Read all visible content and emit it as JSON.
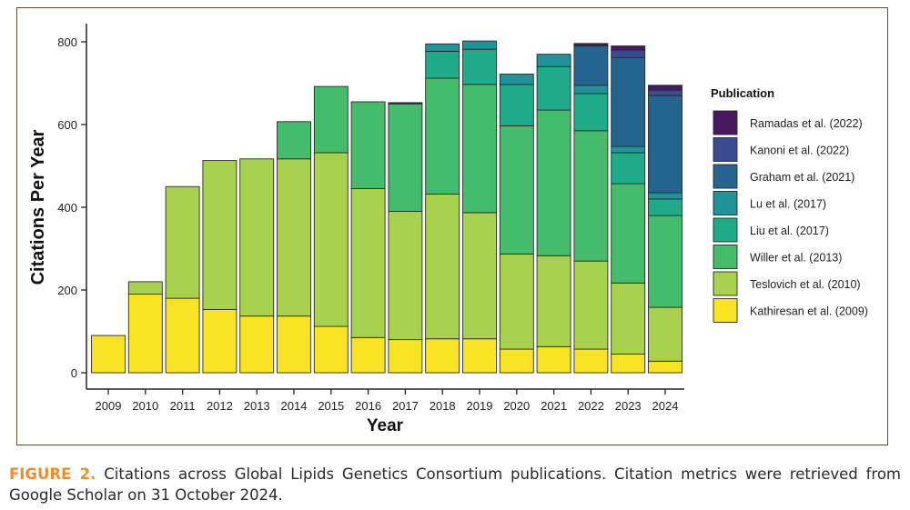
{
  "chart_data": {
    "type": "bar",
    "stacked": true,
    "categories": [
      "2009",
      "2010",
      "2011",
      "2012",
      "2013",
      "2014",
      "2015",
      "2016",
      "2017",
      "2018",
      "2019",
      "2020",
      "2021",
      "2022",
      "2023",
      "2024"
    ],
    "xlabel": "Year",
    "ylabel": "Citations Per Year",
    "ylim": [
      0,
      850
    ],
    "yticks": [
      0,
      200,
      400,
      600,
      800
    ],
    "legend": {
      "title": "Publication",
      "placement": "right"
    },
    "series": [
      {
        "name": "Kathiresan et al. (2009)",
        "color": "#f8e325",
        "values": [
          90,
          190,
          180,
          153,
          137,
          137,
          112,
          85,
          80,
          82,
          82,
          57,
          63,
          57,
          45,
          28
        ]
      },
      {
        "name": "Teslovich et al. (2010)",
        "color": "#a8d14e",
        "values": [
          0,
          30,
          270,
          360,
          380,
          380,
          420,
          360,
          310,
          350,
          305,
          230,
          220,
          213,
          172,
          130
        ]
      },
      {
        "name": "Willer et al. (2013)",
        "color": "#45bc6b",
        "values": [
          0,
          0,
          0,
          0,
          0,
          90,
          160,
          210,
          260,
          280,
          310,
          310,
          352,
          315,
          240,
          222
        ]
      },
      {
        "name": "Liu et al. (2017)",
        "color": "#1fab88",
        "values": [
          0,
          0,
          0,
          0,
          0,
          0,
          0,
          0,
          0,
          65,
          85,
          100,
          105,
          90,
          75,
          40
        ]
      },
      {
        "name": "Lu et al. (2017)",
        "color": "#20939a",
        "values": [
          0,
          0,
          0,
          0,
          0,
          0,
          0,
          0,
          0,
          18,
          20,
          25,
          30,
          20,
          15,
          15
        ]
      },
      {
        "name": "Graham et al. (2021)",
        "color": "#25648f",
        "values": [
          0,
          0,
          0,
          0,
          0,
          0,
          0,
          0,
          0,
          0,
          0,
          0,
          0,
          95,
          215,
          235
        ]
      },
      {
        "name": "Kanoni et al. (2022)",
        "color": "#3a4a8f",
        "values": [
          0,
          0,
          0,
          0,
          0,
          0,
          0,
          0,
          0,
          0,
          0,
          0,
          0,
          3,
          18,
          13
        ]
      },
      {
        "name": "Ramadas et al. (2022)",
        "color": "#48195f",
        "values": [
          0,
          0,
          0,
          0,
          0,
          0,
          0,
          0,
          3,
          0,
          0,
          0,
          0,
          3,
          10,
          12
        ]
      }
    ]
  },
  "caption": {
    "label": "FIGURE 2.",
    "text": " Citations across Global Lipids Genetics Consortium publications. Citation metrics were retrieved from Google Scholar on 31 October 2024."
  }
}
